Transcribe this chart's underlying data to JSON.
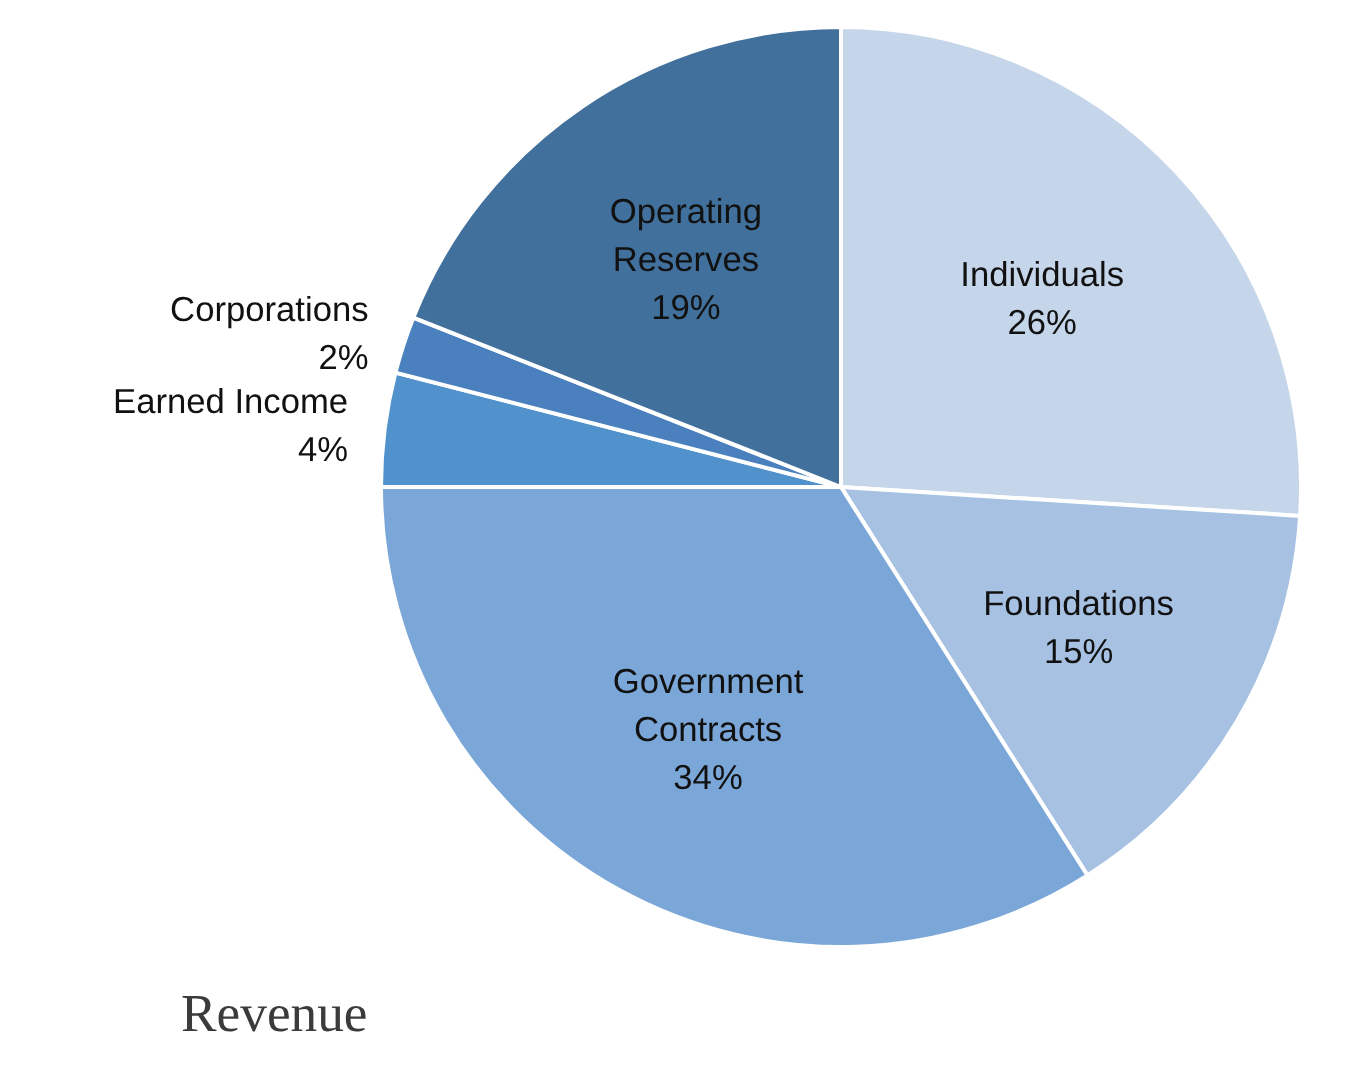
{
  "chart_data": {
    "type": "pie",
    "title": "Revenue",
    "categories": [
      "Individuals",
      "Foundations",
      "Government Contracts",
      "Earned Income",
      "Corporations",
      "Operating Reserves"
    ],
    "values": [
      26,
      15,
      34,
      4,
      2,
      19
    ],
    "value_labels": [
      "26%",
      "15%",
      "34%",
      "4%",
      "2%",
      "19%"
    ],
    "colors": [
      "#c5d5ea",
      "#a7c1e3",
      "#7ba7d8",
      "#5292cc",
      "#4a80bd",
      "#41709c"
    ]
  }
}
